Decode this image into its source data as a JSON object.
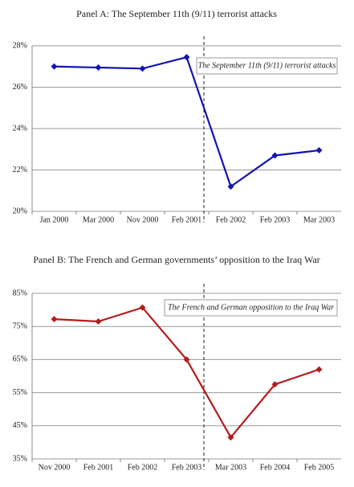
{
  "chart_data": [
    {
      "type": "line",
      "title": "Panel A: The September 11th (9/11) terrorist attacks",
      "annotation": "The September 11th (9/11) terrorist attacks",
      "categories": [
        "Jan 2000",
        "Mar 2000",
        "Nov 2000",
        "Feb 2001",
        "Feb 2002",
        "Feb 2003",
        "Mar 2003"
      ],
      "series": [
        {
          "color": "#1414b4",
          "values": [
            27.0,
            26.95,
            26.9,
            27.45,
            21.2,
            22.7,
            22.95
          ]
        }
      ],
      "ylim": [
        20,
        28
      ],
      "yticks": [
        {
          "value": 20,
          "label": "20%"
        },
        {
          "value": 22,
          "label": "22%"
        },
        {
          "value": 24,
          "label": "24%"
        },
        {
          "value": 26,
          "label": "26%"
        },
        {
          "value": 28,
          "label": "28%"
        }
      ],
      "grid": true
    },
    {
      "type": "line",
      "title": "Panel B: The French and German governments’ opposition to the Iraq War",
      "annotation": "The French and German opposition to the Iraq War",
      "categories": [
        "Nov 2000",
        "Feb 2001",
        "Feb 2002",
        "Feb 2003",
        "Mar 2003",
        "Feb 2004",
        "Feb 2005"
      ],
      "series": [
        {
          "color": "#b41c1c",
          "values": [
            77.2,
            76.5,
            80.7,
            65,
            41.5,
            57.5,
            62
          ]
        }
      ],
      "ylim": [
        35,
        85
      ],
      "yticks": [
        {
          "value": 35,
          "label": "35%"
        },
        {
          "value": 45,
          "label": "45%"
        },
        {
          "value": 55,
          "label": "55%"
        },
        {
          "value": 65,
          "label": "65%"
        },
        {
          "value": 75,
          "label": "75%"
        },
        {
          "value": 85,
          "label": "85%"
        }
      ],
      "grid": true
    }
  ]
}
